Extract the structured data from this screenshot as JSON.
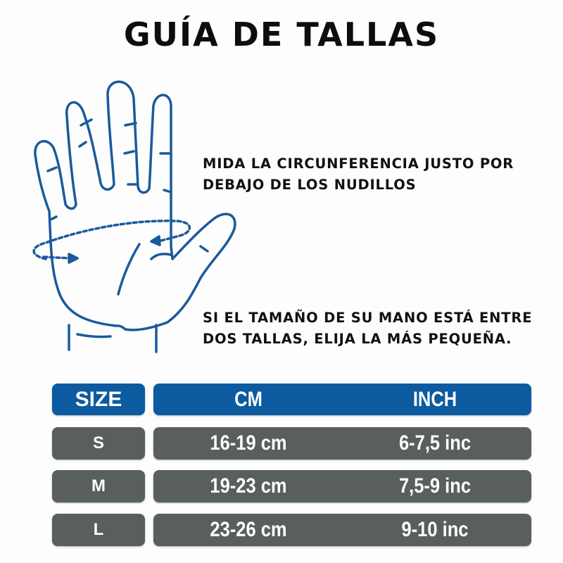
{
  "title": "GUÍA DE TALLAS",
  "instructions": {
    "measure": [
      "MIDA LA CIRCUNFERENCIA JUSTO POR",
      "DEBAJO DE LOS NUDILLOS"
    ],
    "between": [
      "SI EL TAMAÑO DE SU MANO ESTÁ ENTRE",
      "DOS TALLAS, ELIJA LA MÁS PEQUEÑA."
    ]
  },
  "illustration": {
    "icon": "hand-measure-icon",
    "color": "#1a5a9c"
  },
  "table": {
    "headers": {
      "size": "SIZE",
      "cm": "CM",
      "inch": "INCH"
    },
    "rows": [
      {
        "size": "S",
        "cm": "16-19 cm",
        "inch": "6-7,5 inc"
      },
      {
        "size": "M",
        "cm": "19-23 cm",
        "inch": "7,5-9 inc"
      },
      {
        "size": "L",
        "cm": "23-26 cm",
        "inch": "9-10 inc"
      }
    ],
    "header_color": "#0c5aa0",
    "row_color": "#595e5e"
  }
}
